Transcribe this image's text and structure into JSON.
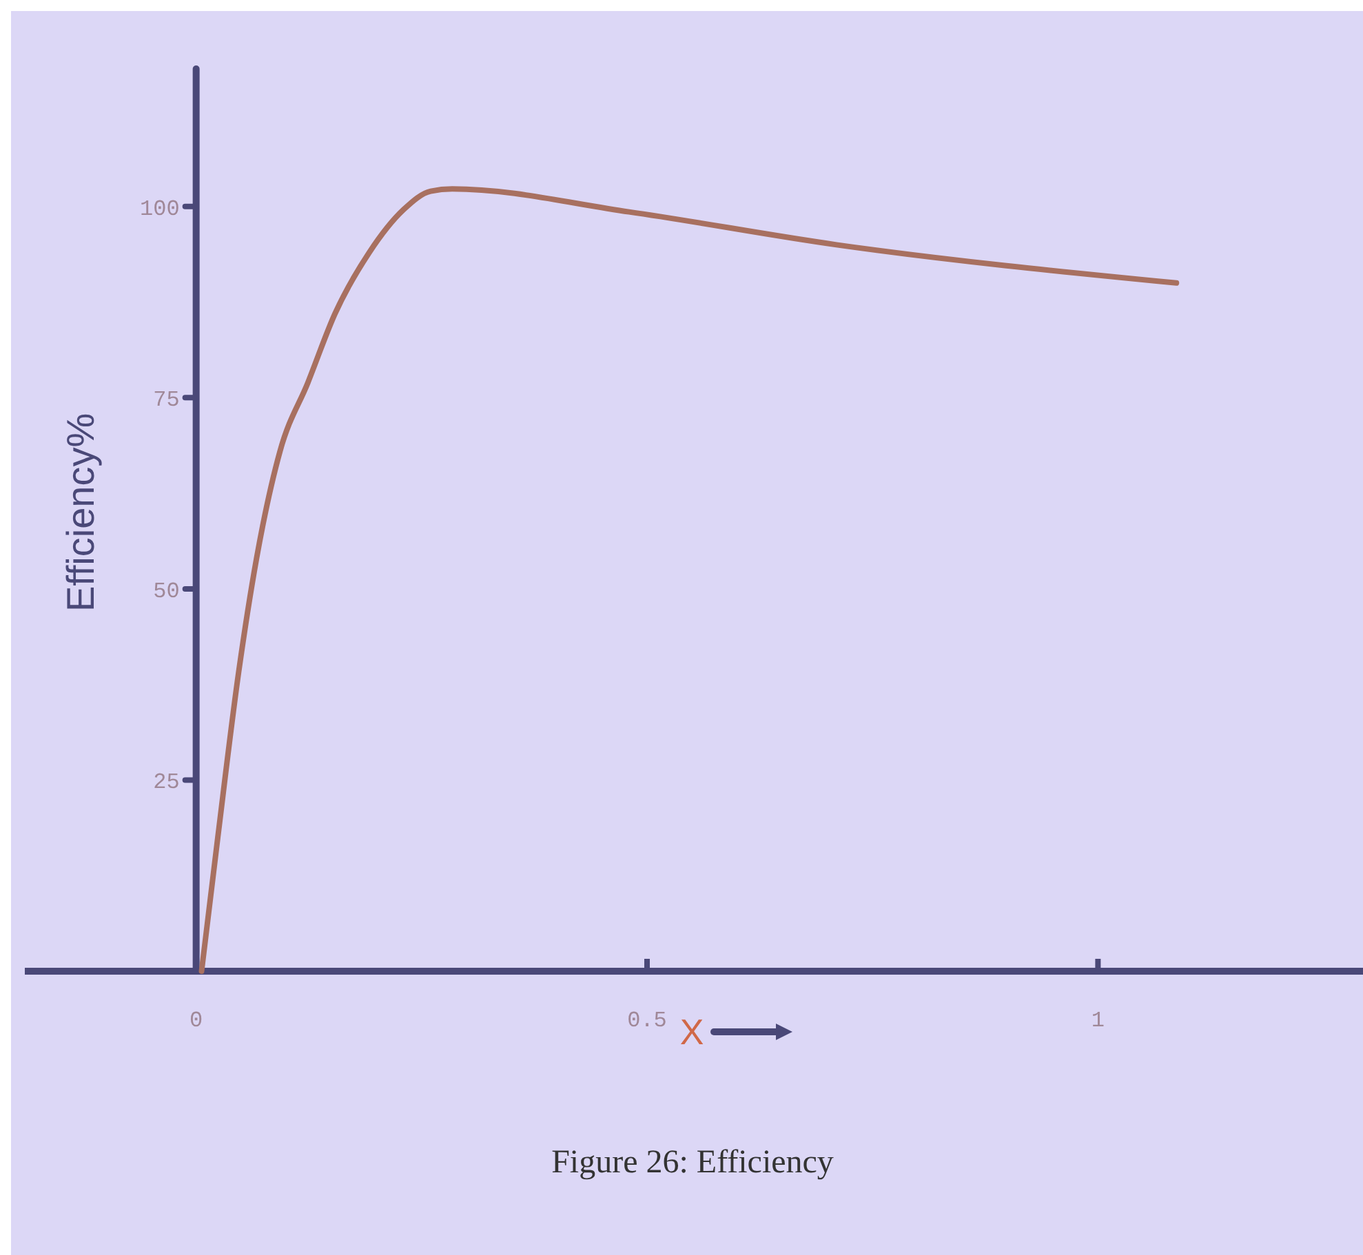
{
  "chart_data": {
    "type": "line",
    "xlabel": "X",
    "ylabel": "Efficiency%",
    "annotations": [
      "Figure 26: Efficiency"
    ],
    "x": [
      0.006,
      0.024,
      0.047,
      0.067,
      0.093,
      0.124,
      0.154,
      0.192,
      0.23,
      0.26,
      0.284,
      0.48,
      0.71,
      1.087
    ],
    "series": [
      {
        "color": "#a87060",
        "values": [
          0,
          17.5,
          39,
          54,
          68,
          77,
          86,
          94,
          99.6,
          102,
          102.3,
          99.3,
          95,
          90
        ]
      }
    ],
    "xlim": [
      -0.19,
      1.3
    ],
    "ylim": [
      0,
      118
    ],
    "xticks": [
      0,
      0.5,
      1
    ],
    "yticks": [
      25,
      50,
      75,
      100
    ],
    "grid": false
  }
}
